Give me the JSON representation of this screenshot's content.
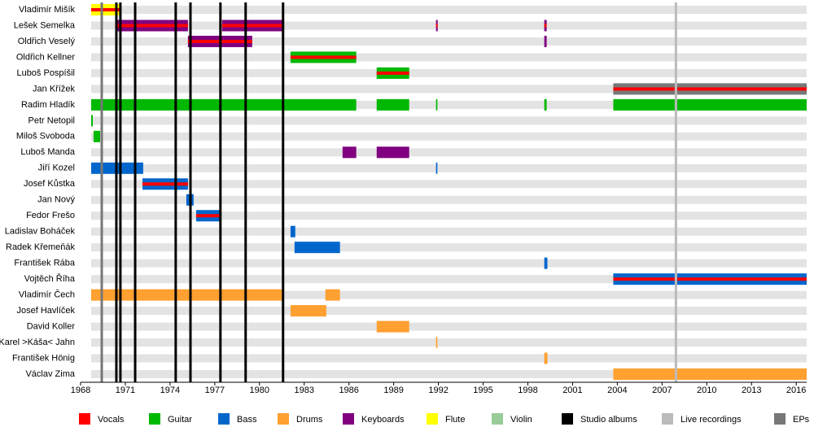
{
  "chart_data": {
    "type": "timeline",
    "xlim": [
      1968,
      2016.7
    ],
    "xticks": [
      1968,
      1971,
      1974,
      1977,
      1980,
      1983,
      1986,
      1989,
      1992,
      1995,
      1998,
      2001,
      2004,
      2007,
      2010,
      2013,
      2016
    ],
    "legend": [
      {
        "name": "Vocals",
        "color": "#ff0000"
      },
      {
        "name": "Guitar",
        "color": "#00b800"
      },
      {
        "name": "Bass",
        "color": "#0066cc"
      },
      {
        "name": "Drums",
        "color": "#ffa030"
      },
      {
        "name": "Keyboards",
        "color": "#800080"
      },
      {
        "name": "Flute",
        "color": "#ffff00"
      },
      {
        "name": "Violin",
        "color": "#99cc99"
      },
      {
        "name": "Studio albums",
        "color": "#000000"
      },
      {
        "name": "Live recordings",
        "color": "#bbbbbb"
      },
      {
        "name": "EPs",
        "color": "#777777"
      }
    ],
    "releases": [
      {
        "kind": "EPs",
        "years": [
          1969.42
        ]
      },
      {
        "kind": "Studio albums",
        "years": [
          1970.4,
          1970.67,
          1971.66,
          1974.38,
          1975.37,
          1977.38,
          1979.07,
          1981.58
        ]
      },
      {
        "kind": "Live recordings",
        "years": [
          2007.93
        ]
      }
    ],
    "members": [
      {
        "name": "Vladimír Mišík",
        "spans": [
          {
            "role": "Flute",
            "stripe": "Vocals",
            "start": 1968.71,
            "end": 1970.73
          }
        ]
      },
      {
        "name": "Lešek Semelka",
        "spans": [
          {
            "role": "Keyboards",
            "stripe": "Vocals",
            "start": 1970.4,
            "end": 1975.2
          },
          {
            "role": "Keyboards",
            "stripe": "Vocals",
            "start": 1977.49,
            "end": 1981.53
          },
          {
            "role": "Keyboards",
            "stripe": "Vocals",
            "start": 1991.84,
            "end": 1991.95
          },
          {
            "role": "Keyboards",
            "stripe": "Vocals",
            "start": 1999.1,
            "end": 1999.26
          }
        ]
      },
      {
        "name": "Oldřich Veselý",
        "spans": [
          {
            "role": "Keyboards",
            "stripe": "Vocals",
            "start": 1975.2,
            "end": 1979.51
          },
          {
            "role": "Keyboards",
            "start": 1999.1,
            "end": 1999.26
          }
        ]
      },
      {
        "name": "Oldřich Kellner",
        "spans": [
          {
            "role": "Guitar",
            "stripe": "Vocals",
            "start": 1982.08,
            "end": 1986.49
          }
        ]
      },
      {
        "name": "Luboš Pospíšil",
        "spans": [
          {
            "role": "Guitar",
            "stripe": "Vocals",
            "start": 1987.86,
            "end": 1990.04
          }
        ]
      },
      {
        "name": "Jan Křížek",
        "spans": [
          {
            "role": "EPs",
            "stripe": "Vocals",
            "start": 2003.73,
            "end": 2016.7
          }
        ]
      },
      {
        "name": "Radim Hladík",
        "spans": [
          {
            "role": "Guitar",
            "start": 1968.71,
            "end": 1986.49
          },
          {
            "role": "Guitar",
            "start": 1987.86,
            "end": 1990.04
          },
          {
            "role": "Guitar",
            "start": 1991.84,
            "end": 1991.93
          },
          {
            "role": "Guitar",
            "start": 1999.1,
            "end": 1999.26
          },
          {
            "role": "Guitar",
            "start": 2003.73,
            "end": 2016.7
          }
        ]
      },
      {
        "name": "Petr Netopil",
        "spans": [
          {
            "role": "Guitar",
            "start": 1968.71,
            "end": 1968.82
          }
        ]
      },
      {
        "name": "Miloš Svoboda",
        "spans": [
          {
            "role": "Guitar",
            "start": 1968.87,
            "end": 1969.31
          }
        ]
      },
      {
        "name": "Luboš Manda",
        "spans": [
          {
            "role": "Keyboards",
            "start": 1985.57,
            "end": 1986.49
          },
          {
            "role": "Keyboards",
            "start": 1987.86,
            "end": 1990.04
          }
        ]
      },
      {
        "name": "Jiří Kozel",
        "spans": [
          {
            "role": "Bass",
            "start": 1968.71,
            "end": 1972.2
          },
          {
            "role": "Bass",
            "start": 1991.84,
            "end": 1991.93
          }
        ]
      },
      {
        "name": "Josef Kůstka",
        "spans": [
          {
            "role": "Bass",
            "stripe": "Vocals",
            "start": 1972.15,
            "end": 1975.2
          }
        ]
      },
      {
        "name": "Jan Nový",
        "spans": [
          {
            "role": "Bass",
            "start": 1975.09,
            "end": 1975.58
          }
        ]
      },
      {
        "name": "Fedor Frešo",
        "spans": [
          {
            "role": "Bass",
            "stripe": "Vocals",
            "start": 1975.75,
            "end": 1977.44
          }
        ]
      },
      {
        "name": "Ladislav Boháček",
        "spans": [
          {
            "role": "Bass",
            "start": 1982.08,
            "end": 1982.4
          }
        ]
      },
      {
        "name": "Radek Křemeňák",
        "spans": [
          {
            "role": "Bass",
            "start": 1982.35,
            "end": 1985.4
          }
        ]
      },
      {
        "name": "František Rába",
        "spans": [
          {
            "role": "Bass",
            "start": 1999.1,
            "end": 1999.31
          }
        ]
      },
      {
        "name": "Vojtěch Říha",
        "spans": [
          {
            "role": "Bass",
            "stripe": "Vocals",
            "start": 2003.73,
            "end": 2016.7
          }
        ]
      },
      {
        "name": "Vladimír Čech",
        "spans": [
          {
            "role": "Drums",
            "start": 1968.71,
            "end": 1981.58
          },
          {
            "role": "Drums",
            "start": 1984.42,
            "end": 1985.4
          }
        ]
      },
      {
        "name": "Josef Havlíček",
        "spans": [
          {
            "role": "Drums",
            "start": 1982.08,
            "end": 1984.48
          }
        ]
      },
      {
        "name": "David Koller",
        "spans": [
          {
            "role": "Drums",
            "start": 1987.86,
            "end": 1990.04
          }
        ]
      },
      {
        "name": "Karel >Káša< Jahn",
        "spans": [
          {
            "role": "Drums",
            "start": 1991.84,
            "end": 1991.93
          }
        ]
      },
      {
        "name": "František Hönig",
        "spans": [
          {
            "role": "Drums",
            "start": 1999.1,
            "end": 1999.31
          }
        ]
      },
      {
        "name": "Václav Zima",
        "spans": [
          {
            "role": "Drums",
            "start": 2003.73,
            "end": 2016.7
          }
        ]
      }
    ]
  }
}
